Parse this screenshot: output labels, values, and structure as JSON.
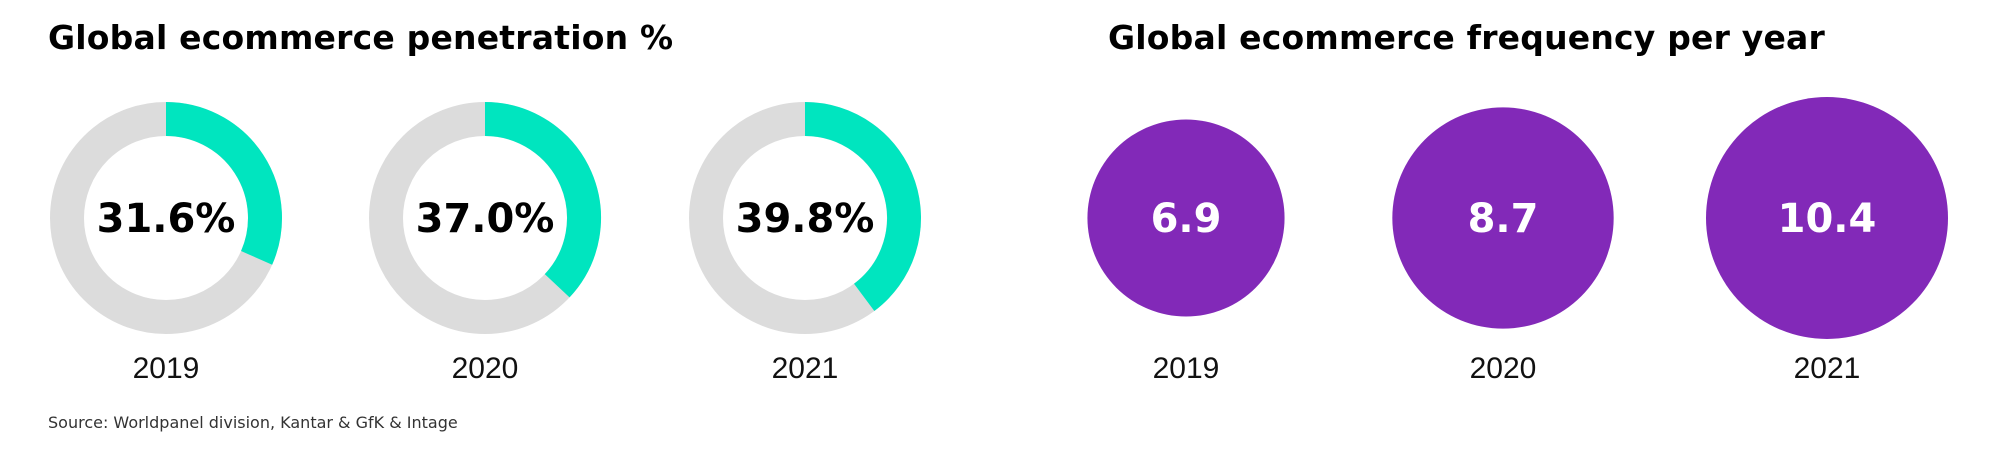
{
  "source_note": "Source: Worldpanel division, Kantar & GfK & Intage",
  "chart_data": [
    {
      "type": "pie",
      "title": "Global ecommerce penetration %",
      "categories": [
        "2019",
        "2020",
        "2021"
      ],
      "series": [
        {
          "values": [
            31.6,
            37.0,
            39.8
          ]
        }
      ],
      "value_labels": [
        "31.6%",
        "37.0%",
        "39.8%"
      ],
      "colors": {
        "highlight": "#00E5BF",
        "remainder": "#DCDCDC",
        "text": "#000000"
      },
      "ylim": [
        0,
        100
      ]
    },
    {
      "type": "scatter",
      "title": "Global ecommerce frequency per year",
      "categories": [
        "2019",
        "2020",
        "2021"
      ],
      "series": [
        {
          "values": [
            6.9,
            8.7,
            10.4
          ]
        }
      ],
      "value_labels": [
        "6.9",
        "8.7",
        "10.4"
      ],
      "colors": {
        "bubble": "#8229B8",
        "text": "#FFFFFF"
      }
    }
  ]
}
